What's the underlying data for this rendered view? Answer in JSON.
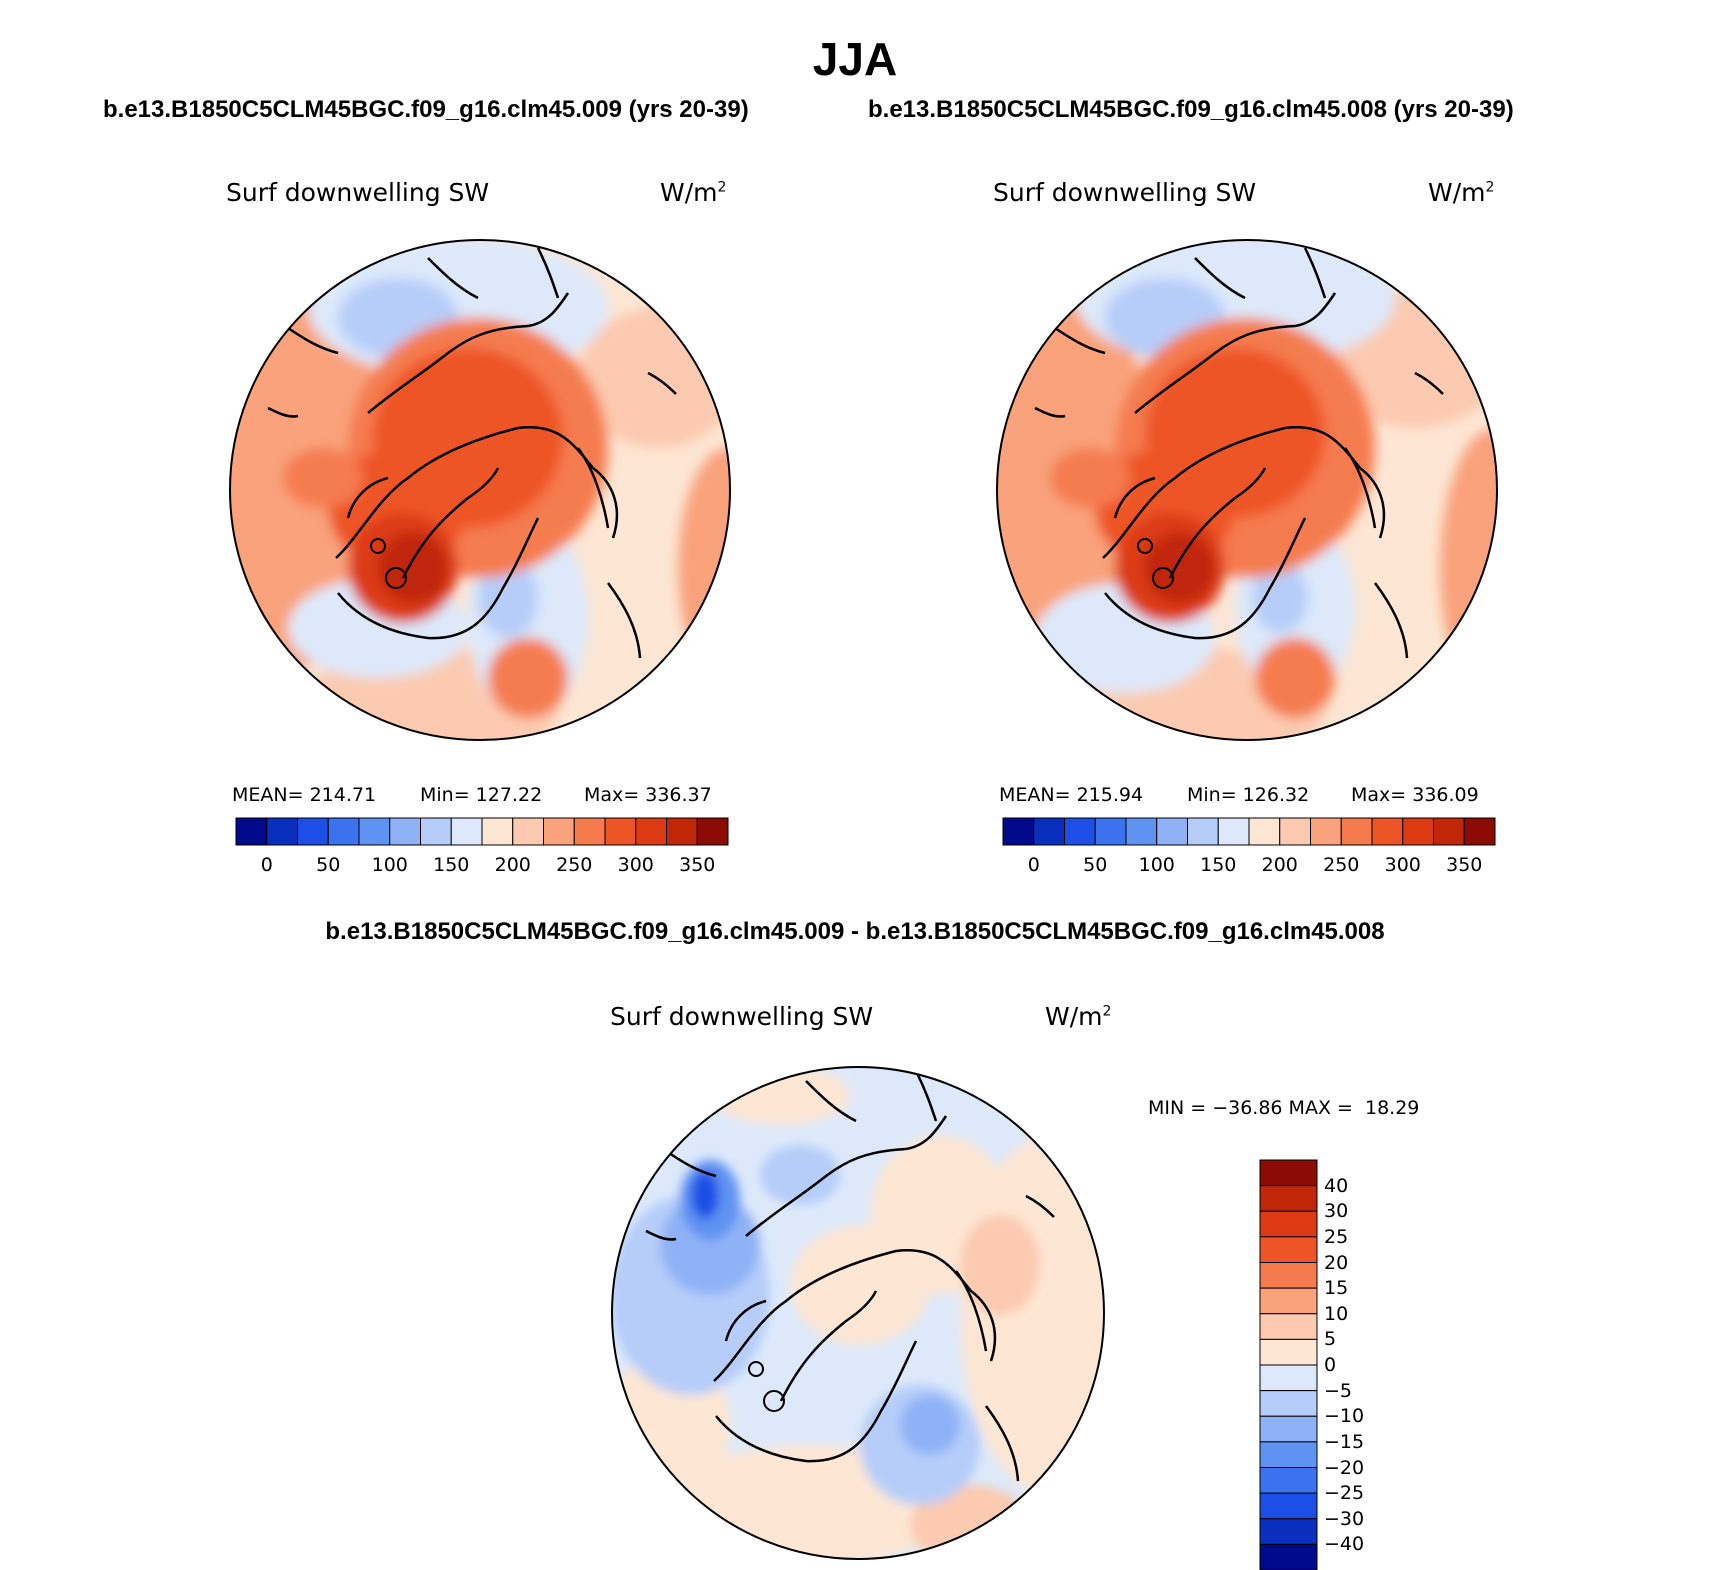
{
  "title": "JJA",
  "cases": {
    "left": "b.e13.B1850C5CLM45BGC.f09_g16.clm45.009 (yrs 20-39)",
    "right": "b.e13.B1850C5CLM45BGC.f09_g16.clm45.008 (yrs 20-39)",
    "difference": "b.e13.B1850C5CLM45BGC.f09_g16.clm45.009 - b.e13.B1850C5CLM45BGC.f09_g16.clm45.008"
  },
  "variable_label": "Surf downwelling SW",
  "units_base": "W/m",
  "units_exp": "2",
  "chart_data": [
    {
      "type": "heatmap",
      "projection": "north polar stereographic",
      "title": "Surf downwelling SW",
      "units": "W/m2",
      "case": "b.e13.B1850C5CLM45BGC.f09_g16.clm45.009 (yrs 20-39)",
      "stats": {
        "mean": 214.71,
        "min": 127.22,
        "max": 336.37
      },
      "stats_text": {
        "mean": "MEAN= 214.71",
        "min": "Min= 127.22",
        "max": "Max= 336.37"
      },
      "colorbar": {
        "colors": [
          "#000a8a",
          "#0a2fbf",
          "#1d4fe6",
          "#3b72f0",
          "#5f93f2",
          "#8fb2f6",
          "#b6cdf9",
          "#dde9fb",
          "#fde6d4",
          "#fccab0",
          "#f9a27c",
          "#f57b4f",
          "#ee5526",
          "#dc3a13",
          "#bf2708",
          "#8c0b05"
        ],
        "ticks": [
          "0",
          "50",
          "100",
          "150",
          "200",
          "250",
          "300",
          "350"
        ]
      }
    },
    {
      "type": "heatmap",
      "projection": "north polar stereographic",
      "title": "Surf downwelling SW",
      "units": "W/m2",
      "case": "b.e13.B1850C5CLM45BGC.f09_g16.clm45.008 (yrs 20-39)",
      "stats": {
        "mean": 215.94,
        "min": 126.32,
        "max": 336.09
      },
      "stats_text": {
        "mean": "MEAN= 215.94",
        "min": "Min= 126.32",
        "max": "Max= 336.09"
      },
      "colorbar": {
        "colors": [
          "#000a8a",
          "#0a2fbf",
          "#1d4fe6",
          "#3b72f0",
          "#5f93f2",
          "#8fb2f6",
          "#b6cdf9",
          "#dde9fb",
          "#fde6d4",
          "#fccab0",
          "#f9a27c",
          "#f57b4f",
          "#ee5526",
          "#dc3a13",
          "#bf2708",
          "#8c0b05"
        ],
        "ticks": [
          "0",
          "50",
          "100",
          "150",
          "200",
          "250",
          "300",
          "350"
        ]
      }
    },
    {
      "type": "heatmap",
      "projection": "north polar stereographic",
      "title": "Surf downwelling SW",
      "units": "W/m2",
      "case": "b.e13.B1850C5CLM45BGC.f09_g16.clm45.009 - b.e13.B1850C5CLM45BGC.f09_g16.clm45.008",
      "stats": {
        "min": -36.86,
        "max": 18.29
      },
      "stats_text": "MIN = −36.86 MAX =  18.29",
      "colorbar": {
        "orientation": "vertical",
        "colors": [
          "#8c0b05",
          "#bf2708",
          "#dc3a13",
          "#ee5526",
          "#f57b4f",
          "#f9a27c",
          "#fccab0",
          "#fde6d4",
          "#dde9fb",
          "#b6cdf9",
          "#8fb2f6",
          "#5f93f2",
          "#3b72f0",
          "#1d4fe6",
          "#0a2fbf",
          "#000a8a"
        ],
        "ticks": [
          "40",
          "30",
          "25",
          "20",
          "15",
          "10",
          "5",
          "0",
          "−5",
          "−10",
          "−15",
          "−20",
          "−25",
          "−30",
          "−40"
        ]
      }
    }
  ]
}
